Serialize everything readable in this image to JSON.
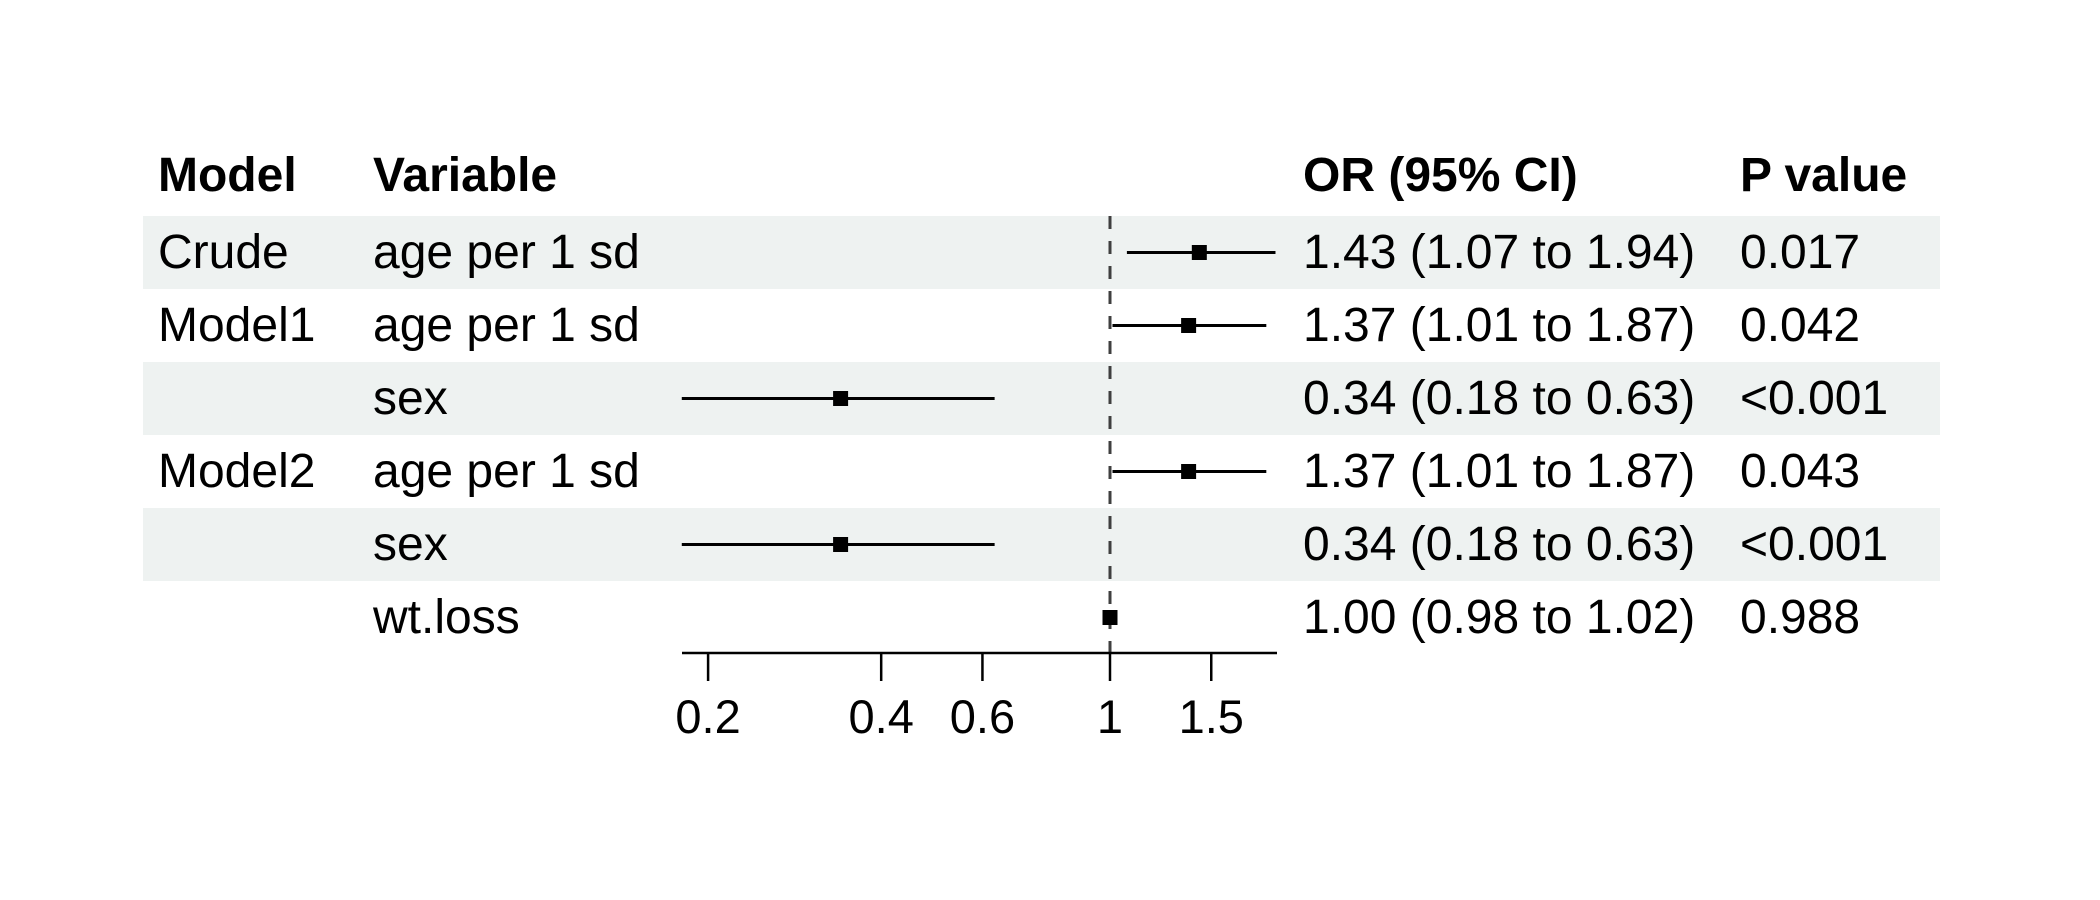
{
  "chart_data": {
    "type": "forest",
    "columns": [
      "Model",
      "Variable",
      "OR (95% CI)",
      "P value"
    ],
    "rows": [
      {
        "model": "Crude",
        "variable": "age per 1 sd",
        "or_ci": "1.43 (1.07 to 1.94)",
        "p": "0.017",
        "est": 1.43,
        "lo": 1.07,
        "hi": 1.94,
        "striped": true
      },
      {
        "model": "Model1",
        "variable": "age per 1 sd",
        "or_ci": "1.37 (1.01 to 1.87)",
        "p": "0.042",
        "est": 1.37,
        "lo": 1.01,
        "hi": 1.87,
        "striped": false
      },
      {
        "model": "",
        "variable": "sex",
        "or_ci": "0.34 (0.18 to 0.63)",
        "p": "<0.001",
        "est": 0.34,
        "lo": 0.18,
        "hi": 0.63,
        "striped": true
      },
      {
        "model": "Model2",
        "variable": "age per 1 sd",
        "or_ci": "1.37 (1.01 to 1.87)",
        "p": "0.043",
        "est": 1.37,
        "lo": 1.01,
        "hi": 1.87,
        "striped": false
      },
      {
        "model": "",
        "variable": "sex",
        "or_ci": "0.34 (0.18 to 0.63)",
        "p": "<0.001",
        "est": 0.34,
        "lo": 0.18,
        "hi": 0.63,
        "striped": true
      },
      {
        "model": "",
        "variable": "wt.loss",
        "or_ci": "1.00 (0.98 to 1.02)",
        "p": "0.988",
        "est": 1.0,
        "lo": 0.98,
        "hi": 1.02,
        "striped": false
      }
    ],
    "x_axis": {
      "scale": "log",
      "tick_labels": [
        "0.2",
        "0.4",
        "0.6",
        "1",
        "1.5"
      ],
      "tick_values": [
        0.2,
        0.4,
        0.6,
        1,
        1.5
      ],
      "range": [
        0.18,
        1.94
      ],
      "reference_line": 1
    },
    "legend": "none",
    "grid": "off",
    "colors": {
      "stripe": "#eef2f1",
      "marker": "#000000",
      "ci_line": "#000000",
      "reference_line": "#3f3f3f",
      "axis": "#000000",
      "text": "#000000"
    }
  }
}
